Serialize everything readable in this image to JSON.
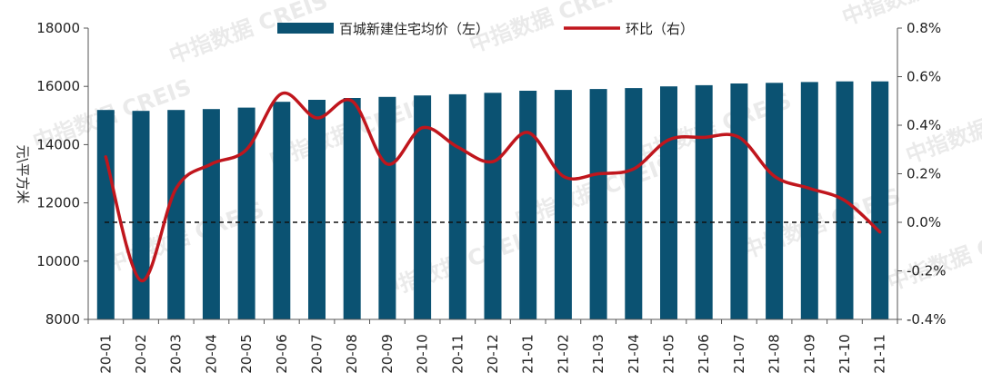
{
  "chart_data": {
    "type": "bar",
    "categories": [
      "20-01",
      "20-02",
      "20-03",
      "20-04",
      "20-05",
      "20-06",
      "20-07",
      "20-08",
      "20-09",
      "20-10",
      "20-11",
      "20-12",
      "21-01",
      "21-02",
      "21-03",
      "21-04",
      "21-05",
      "21-06",
      "21-07",
      "21-08",
      "21-09",
      "21-10",
      "21-11"
    ],
    "series": [
      {
        "name": "百城新建住宅均价（左）",
        "type": "bar",
        "axis": "left",
        "color": "#0b5272",
        "values": [
          15190,
          15160,
          15190,
          15220,
          15270,
          15470,
          15540,
          15600,
          15640,
          15690,
          15730,
          15780,
          15850,
          15880,
          15910,
          15940,
          16000,
          16040,
          16100,
          16120,
          16150,
          16170,
          16170
        ]
      },
      {
        "name": "环比（右）",
        "type": "line",
        "axis": "right",
        "color": "#c0161d",
        "values": [
          0.27,
          -0.24,
          0.14,
          0.24,
          0.3,
          0.53,
          0.43,
          0.5,
          0.24,
          0.39,
          0.31,
          0.25,
          0.37,
          0.19,
          0.2,
          0.22,
          0.34,
          0.35,
          0.35,
          0.19,
          0.14,
          0.09,
          -0.04
        ]
      }
    ],
    "ylabel": "元\\平方米",
    "ylim": [
      8000,
      18000
    ],
    "yticks": [
      "8000",
      "10000",
      "12000",
      "14000",
      "16000",
      "18000"
    ],
    "y2lim": [
      -0.4,
      0.8
    ],
    "y2ticks": [
      "-0.4%",
      "-0.2%",
      "0.0%",
      "0.2%",
      "0.4%",
      "0.6%",
      "0.8%"
    ],
    "reference_line": {
      "axis": "right",
      "value": 0.0,
      "style": "dashed"
    },
    "legend_position": "top-center",
    "grid": false
  },
  "watermark": "中指数据 CREIS"
}
